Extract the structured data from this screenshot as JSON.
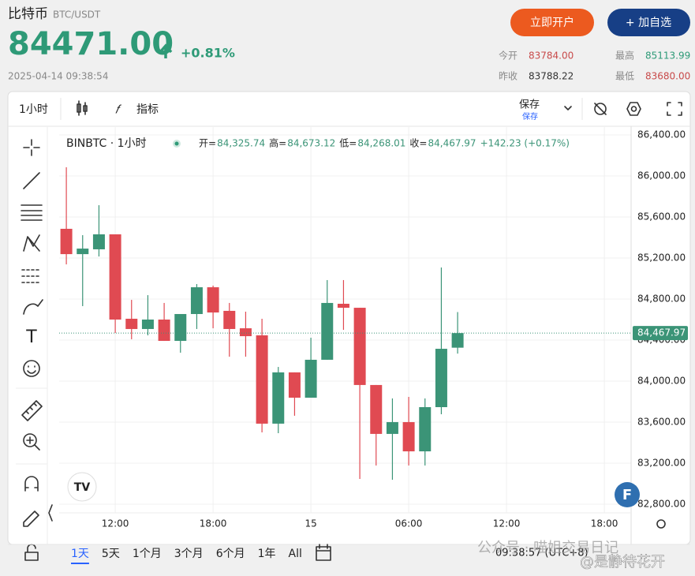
{
  "header": {
    "name": "比特币",
    "pair": "BTC/USDT",
    "price": "84471.00",
    "change": "+0.81%",
    "datetime": "2025-04-14 09:38:54",
    "buttons": [
      "立即开户",
      "+ 加自选"
    ],
    "stats": [
      {
        "label": "今开",
        "value": "83784.00"
      },
      {
        "label": "最高",
        "value": "85113.99"
      },
      {
        "label": "昨收",
        "value": "83788.22"
      },
      {
        "label": "最低",
        "value": "83680.00"
      }
    ]
  },
  "toolbar": {
    "interval": "1小时",
    "indicators": "指标",
    "save": "保存",
    "save_sub": "保存"
  },
  "chart_data": {
    "type": "candlestick",
    "symbol": "BINBTC · 1小时",
    "legend": [
      {
        "label": "开=",
        "value": "84,325.74"
      },
      {
        "label": "高=",
        "value": "84,673.12"
      },
      {
        "label": "低=",
        "value": "84,268.01"
      },
      {
        "label": "收=",
        "value": "84,467.97"
      }
    ],
    "legend_change": "+142.23 (+0.17%)",
    "x": [
      0,
      1,
      2,
      3,
      4,
      5,
      6,
      7,
      8,
      9,
      10,
      11,
      12,
      13,
      14,
      15,
      16,
      17,
      18,
      19,
      20,
      21,
      22,
      23,
      24
    ],
    "open": [
      85485,
      85238,
      85285,
      85431,
      84608,
      84508,
      84600,
      84392,
      84654,
      84915,
      84685,
      84515,
      84446,
      83585,
      84085,
      83838,
      84208,
      84754,
      84715,
      83962,
      83485,
      83600,
      83315,
      83746,
      84325.74
    ],
    "high": [
      86085,
      85423,
      85715,
      85431,
      84792,
      84838,
      84762,
      84654,
      84946,
      84931,
      84762,
      84677,
      84608,
      84138,
      84085,
      84423,
      84985,
      84985,
      84715,
      83962,
      83831,
      83846,
      83831,
      85108,
      84673.12
    ],
    "low": [
      85138,
      84731,
      85215,
      84469,
      84408,
      84446,
      84392,
      84277,
      84508,
      84515,
      84238,
      84238,
      83500,
      83492,
      83662,
      83838,
      84208,
      84500,
      83046,
      83177,
      83038,
      83177,
      83177,
      83677,
      84268.01
    ],
    "close": [
      85238,
      85292,
      85431,
      84600,
      84508,
      84600,
      84392,
      84654,
      84915,
      84669,
      84508,
      84438,
      83585,
      84085,
      83838,
      84208,
      84762,
      84715,
      83962,
      83485,
      83600,
      83315,
      83746,
      84315,
      84467.97
    ],
    "up_color": "#3b9477",
    "down_color": "#e04a52",
    "xlim": [
      -0.44,
      34.64
    ],
    "xticks": [
      {
        "value": 3,
        "label": "12:00"
      },
      {
        "value": 9,
        "label": "18:00"
      },
      15,
      {
        "value": 21,
        "label": "06:00"
      },
      {
        "value": 27,
        "label": "12:00"
      },
      {
        "value": 33,
        "label": "18:00"
      }
    ],
    "ylim": [
      82715,
      86485
    ],
    "yticks": [
      {
        "value": 86400,
        "label": "86,400.00"
      },
      {
        "value": 86000,
        "label": "86,000.00"
      },
      {
        "value": 85600,
        "label": "85,600.00"
      },
      {
        "value": 85200,
        "label": "85,200.00"
      },
      {
        "value": 84800,
        "label": "84,800.00"
      },
      {
        "value": 84400,
        "label": "84,400.00"
      },
      {
        "value": 84000,
        "label": "84,000.00"
      },
      {
        "value": 83600,
        "label": "83,600.00"
      },
      {
        "value": 83200,
        "label": "83,200.00"
      },
      {
        "value": 82800,
        "label": "82,800.00"
      }
    ],
    "last_price": {
      "value": 84467.97,
      "label": "84,467.97"
    },
    "grid": true
  },
  "range_bar": {
    "ranges": [
      "1天",
      "5天",
      "1个月",
      "3个月",
      "6个月",
      "1年",
      "All"
    ],
    "clock": "09:38:57 (UTC+8)"
  },
  "watermark": {
    "line1": "公众号 · 喵姐交易日记",
    "line2": "@是静待花开"
  }
}
